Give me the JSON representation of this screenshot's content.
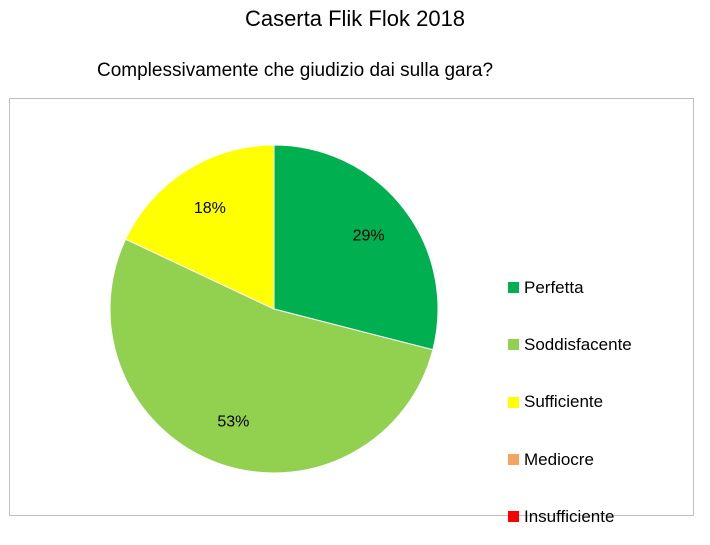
{
  "page": {
    "title": "Caserta Flik Flok 2018",
    "question": "Complessivamente che giudizio dai sulla gara?"
  },
  "chart_data": {
    "type": "pie",
    "title": "Complessivamente che giudizio dai sulla gara?",
    "legend_position": "right",
    "categories": [
      "Perfetta",
      "Soddisfacente",
      "Sufficiente",
      "Mediocre",
      "Insufficiente"
    ],
    "values": [
      29,
      53,
      18,
      0,
      0
    ],
    "labels": [
      "29%",
      "53%",
      "18%",
      "",
      ""
    ],
    "colors": [
      "#00b050",
      "#92d050",
      "#ffff00",
      "#f4a460",
      "#ff0000"
    ]
  }
}
